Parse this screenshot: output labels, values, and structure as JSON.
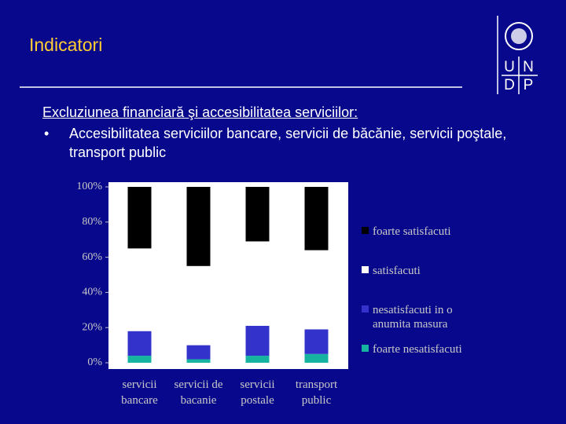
{
  "header": {
    "title": "Indicatori",
    "logo": [
      "U",
      "N",
      "D",
      "P"
    ]
  },
  "body": {
    "heading": "Excluziunea financiară şi accesibilitatea serviciilor:",
    "bullets": [
      "Accesibilitatea serviciilor bancare, servicii de băcănie, servicii poştale, transport public"
    ]
  },
  "chart_data": {
    "type": "stacked_bar",
    "categories": [
      "servicii bancare",
      "servicii de bacanie",
      "servicii postale",
      "transport public"
    ],
    "series": [
      {
        "name": "foarte nesatisfacuti",
        "color": "#16b3a0",
        "values": [
          4,
          2,
          4,
          5
        ]
      },
      {
        "name": "nesatisfacuti in o anumita masura",
        "color": "#3333cc",
        "values": [
          14,
          8,
          17,
          14
        ]
      },
      {
        "name": "satisfacuti",
        "color": "#ffffff",
        "values": [
          47,
          45,
          48,
          45
        ]
      },
      {
        "name": "foarte satisfacuti",
        "color": "#000000",
        "values": [
          35,
          45,
          31,
          36
        ]
      }
    ],
    "ylim": [
      0,
      100
    ],
    "yticks": [
      {
        "value": 0,
        "label": "0%"
      },
      {
        "value": 20,
        "label": "20%"
      },
      {
        "value": 40,
        "label": "40%"
      },
      {
        "value": 60,
        "label": "60%"
      },
      {
        "value": 80,
        "label": "80%"
      },
      {
        "value": 100,
        "label": "100%"
      }
    ],
    "grid": false,
    "legend": "right"
  }
}
